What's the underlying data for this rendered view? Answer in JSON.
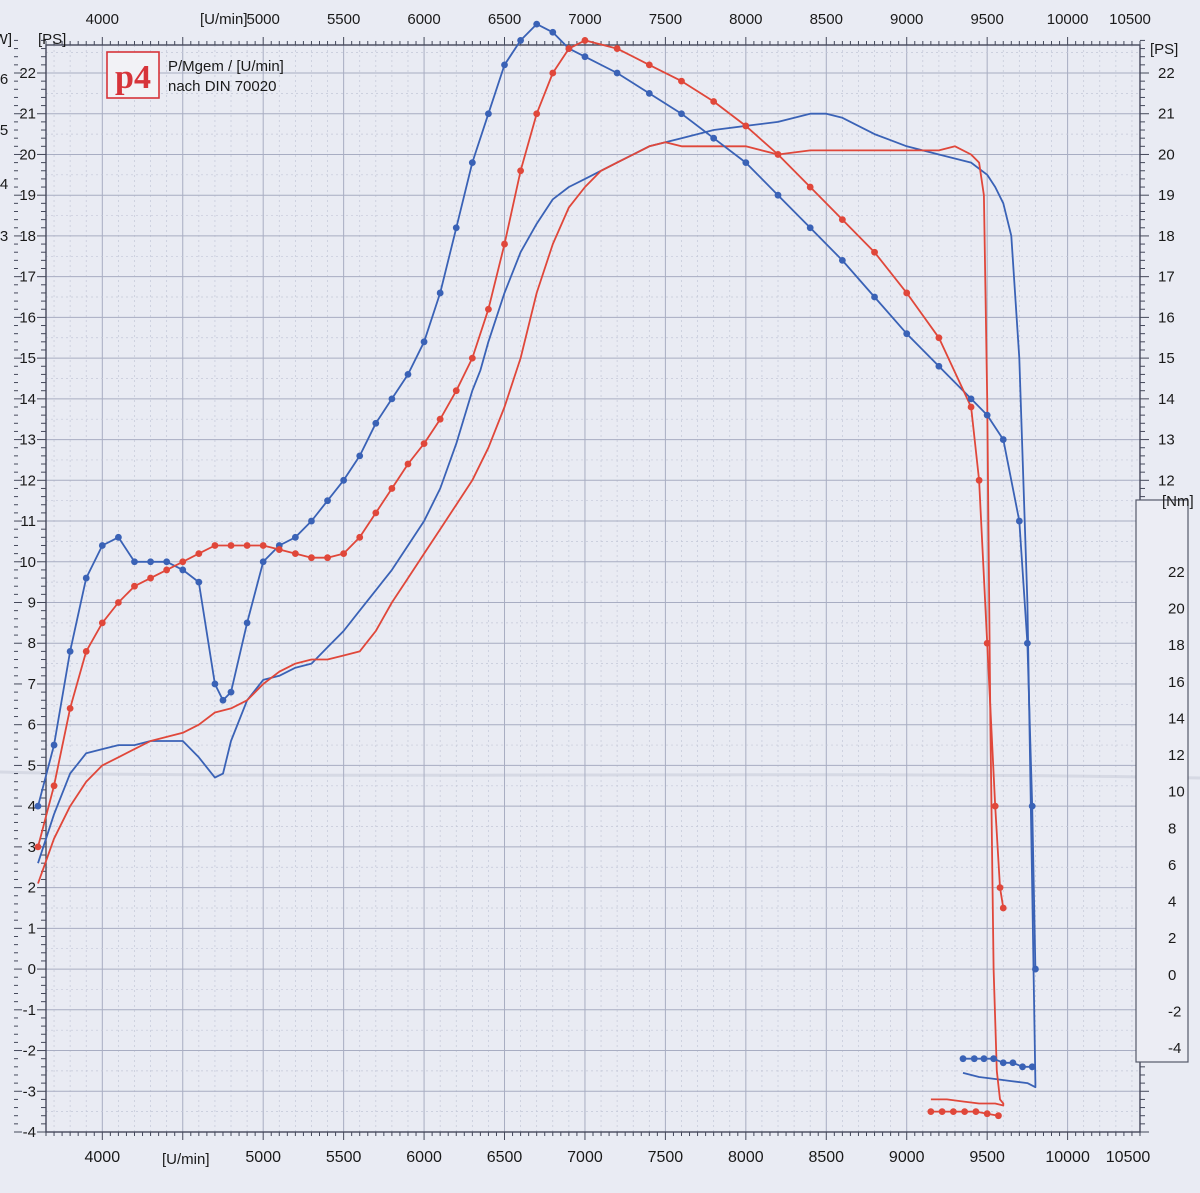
{
  "header": {
    "logo_text": "p4",
    "line1": "P/Mgem / [U/min]",
    "line2": "nach DIN 70020"
  },
  "axis_units": {
    "rpm_top": "[U/min]",
    "rpm_bottom": "[U/min]",
    "ps_left": "[PS]",
    "ps_right": "[PS]",
    "kw_left": "[kW]",
    "nm_right": "[Nm]"
  },
  "colors": {
    "paper": "#e9ebf3",
    "grid_major": "#a8adc2",
    "grid_minor": "#c3c7d7",
    "run_red": "#e0473a",
    "run_blue": "#3a62b6",
    "logo_red": "#d7343a"
  },
  "chart_data": {
    "type": "line",
    "xlabel": "[U/min]",
    "ylabel": "[PS]",
    "y2label": "[Nm]",
    "xlim": [
      3600,
      10500
    ],
    "ylim": [
      -4,
      22.8
    ],
    "y2lim": [
      -4,
      22
    ],
    "grid": true,
    "x_ticks_top": [
      4000,
      5000,
      5500,
      6000,
      6500,
      7000,
      7500,
      8000,
      8500,
      9000,
      9500,
      10000,
      10500
    ],
    "x_ticks_bottom": [
      4000,
      5000,
      5500,
      6000,
      6500,
      7000,
      7500,
      8000,
      8500,
      9000,
      9500,
      10000,
      10500
    ],
    "y_ticks_left": [
      -4,
      -3,
      -2,
      -1,
      0,
      1,
      2,
      3,
      4,
      5,
      6,
      7,
      8,
      9,
      10,
      11,
      12,
      13,
      14,
      15,
      16,
      17,
      18,
      19,
      20,
      21,
      22
    ],
    "y_ticks_right": [
      12,
      13,
      14,
      15,
      16,
      17,
      18,
      19,
      20,
      21,
      22
    ],
    "y2_ticks": [
      -4,
      -2,
      0,
      2,
      4,
      6,
      8,
      10,
      12,
      14,
      16,
      18,
      20,
      22
    ],
    "kw_partial_ticks": [
      "6",
      "5",
      "4",
      "3"
    ],
    "series": [
      {
        "color": "#3a62b6",
        "kind": "power",
        "x": [
          3600,
          3700,
          3800,
          3900,
          4000,
          4100,
          4200,
          4300,
          4400,
          4500,
          4600,
          4700,
          4750,
          4800,
          4900,
          5000,
          5100,
          5200,
          5300,
          5400,
          5500,
          5600,
          5700,
          5800,
          5900,
          6000,
          6100,
          6200,
          6300,
          6350,
          6400,
          6500,
          6600,
          6700,
          6800,
          6900,
          7000,
          7200,
          7400,
          7600,
          7800,
          8000,
          8200,
          8400,
          8500,
          8600,
          8800,
          9000,
          9200,
          9400,
          9500,
          9550,
          9600,
          9650,
          9700,
          9750,
          9780,
          9800,
          9800,
          9750,
          9650,
          9550,
          9450,
          9350
        ],
        "y": [
          2.6,
          3.8,
          4.8,
          5.3,
          5.4,
          5.5,
          5.5,
          5.6,
          5.6,
          5.6,
          5.2,
          4.7,
          4.8,
          5.6,
          6.6,
          7.1,
          7.2,
          7.4,
          7.5,
          7.9,
          8.3,
          8.8,
          9.3,
          9.8,
          10.4,
          11.0,
          11.8,
          12.9,
          14.2,
          14.7,
          15.4,
          16.6,
          17.6,
          18.3,
          18.9,
          19.2,
          19.4,
          19.8,
          20.2,
          20.4,
          20.6,
          20.7,
          20.8,
          21.0,
          21.0,
          20.9,
          20.5,
          20.2,
          20.0,
          19.8,
          19.5,
          19.2,
          18.8,
          18.0,
          15.0,
          9.0,
          2.0,
          -2.8,
          -2.9,
          -2.8,
          -2.75,
          -2.7,
          -2.65,
          -2.55
        ]
      },
      {
        "color": "#e0473a",
        "kind": "power",
        "x": [
          3600,
          3700,
          3800,
          3900,
          4000,
          4100,
          4200,
          4300,
          4400,
          4500,
          4600,
          4700,
          4800,
          4900,
          5000,
          5100,
          5200,
          5300,
          5400,
          5500,
          5600,
          5700,
          5800,
          5900,
          6000,
          6100,
          6200,
          6300,
          6400,
          6500,
          6600,
          6700,
          6800,
          6900,
          7000,
          7100,
          7200,
          7300,
          7400,
          7500,
          7600,
          7800,
          8000,
          8200,
          8400,
          8600,
          8800,
          9000,
          9200,
          9300,
          9400,
          9450,
          9480,
          9500,
          9520,
          9540,
          9560,
          9580,
          9600,
          9600,
          9550,
          9450,
          9350,
          9250,
          9150
        ],
        "y": [
          2.1,
          3.2,
          4.0,
          4.6,
          5.0,
          5.2,
          5.4,
          5.6,
          5.7,
          5.8,
          6.0,
          6.3,
          6.4,
          6.6,
          7.0,
          7.3,
          7.5,
          7.6,
          7.6,
          7.7,
          7.8,
          8.3,
          9.0,
          9.6,
          10.2,
          10.8,
          11.4,
          12.0,
          12.8,
          13.8,
          15.0,
          16.6,
          17.8,
          18.7,
          19.2,
          19.6,
          19.8,
          20.0,
          20.2,
          20.3,
          20.2,
          20.2,
          20.2,
          20.0,
          20.1,
          20.1,
          20.1,
          20.1,
          20.1,
          20.2,
          20.0,
          19.8,
          19.0,
          14.0,
          6.0,
          0.0,
          -2.5,
          -3.2,
          -3.3,
          -3.35,
          -3.3,
          -3.3,
          -3.25,
          -3.2,
          -3.2
        ]
      },
      {
        "color": "#3a62b6",
        "kind": "torque",
        "markers": true,
        "x": [
          3600,
          3700,
          3800,
          3900,
          4000,
          4100,
          4200,
          4300,
          4400,
          4500,
          4600,
          4700,
          4750,
          4800,
          4900,
          5000,
          5100,
          5200,
          5300,
          5400,
          5500,
          5600,
          5700,
          5800,
          5900,
          6000,
          6100,
          6200,
          6300,
          6400,
          6500,
          6600,
          6700,
          6800,
          6900,
          7000,
          7200,
          7400,
          7600,
          7800,
          8000,
          8200,
          8400,
          8600,
          8800,
          9000,
          9200,
          9400,
          9500,
          9600,
          9700,
          9750,
          9780,
          9800
        ],
        "y": [
          4.0,
          5.5,
          7.8,
          9.6,
          10.4,
          10.6,
          10.0,
          10.0,
          10.0,
          9.8,
          9.5,
          7.0,
          6.6,
          6.8,
          8.5,
          10.0,
          10.4,
          10.6,
          11.0,
          11.5,
          12.0,
          12.6,
          13.4,
          14.0,
          14.6,
          15.4,
          16.6,
          18.2,
          19.8,
          21.0,
          22.2,
          22.8,
          23.2,
          23.0,
          22.6,
          22.4,
          22.0,
          21.5,
          21.0,
          20.4,
          19.8,
          19.0,
          18.2,
          17.4,
          16.5,
          15.6,
          14.8,
          14.0,
          13.6,
          13.0,
          11.0,
          8.0,
          4.0,
          0.0
        ]
      },
      {
        "color": "#e0473a",
        "kind": "torque",
        "markers": true,
        "x": [
          3600,
          3700,
          3800,
          3900,
          4000,
          4100,
          4200,
          4300,
          4400,
          4500,
          4600,
          4700,
          4800,
          4900,
          5000,
          5100,
          5200,
          5300,
          5400,
          5500,
          5600,
          5700,
          5800,
          5900,
          6000,
          6100,
          6200,
          6300,
          6400,
          6500,
          6600,
          6700,
          6800,
          6900,
          7000,
          7200,
          7400,
          7600,
          7800,
          8000,
          8200,
          8400,
          8600,
          8800,
          9000,
          9200,
          9400,
          9450,
          9500,
          9550,
          9580,
          9600
        ],
        "y": [
          3.0,
          4.5,
          6.4,
          7.8,
          8.5,
          9.0,
          9.4,
          9.6,
          9.8,
          10.0,
          10.2,
          10.4,
          10.4,
          10.4,
          10.4,
          10.3,
          10.2,
          10.1,
          10.1,
          10.2,
          10.6,
          11.2,
          11.8,
          12.4,
          12.9,
          13.5,
          14.2,
          15.0,
          16.2,
          17.8,
          19.6,
          21.0,
          22.0,
          22.6,
          22.8,
          22.6,
          22.2,
          21.8,
          21.3,
          20.7,
          20.0,
          19.2,
          18.4,
          17.6,
          16.6,
          15.5,
          13.8,
          12.0,
          8.0,
          4.0,
          2.0,
          1.5
        ]
      },
      {
        "color": "#3a62b6",
        "kind": "torque",
        "markers": true,
        "segment": "low-tail",
        "x": [
          9350,
          9420,
          9480,
          9540,
          9600,
          9660,
          9720,
          9780
        ],
        "y": [
          -2.2,
          -2.2,
          -2.2,
          -2.2,
          -2.3,
          -2.3,
          -2.4,
          -2.4
        ]
      },
      {
        "color": "#e0473a",
        "kind": "torque",
        "markers": true,
        "segment": "low-tail",
        "x": [
          9150,
          9220,
          9290,
          9360,
          9430,
          9500,
          9570
        ],
        "y": [
          -3.5,
          -3.5,
          -3.5,
          -3.5,
          -3.5,
          -3.55,
          -3.6
        ]
      }
    ]
  }
}
